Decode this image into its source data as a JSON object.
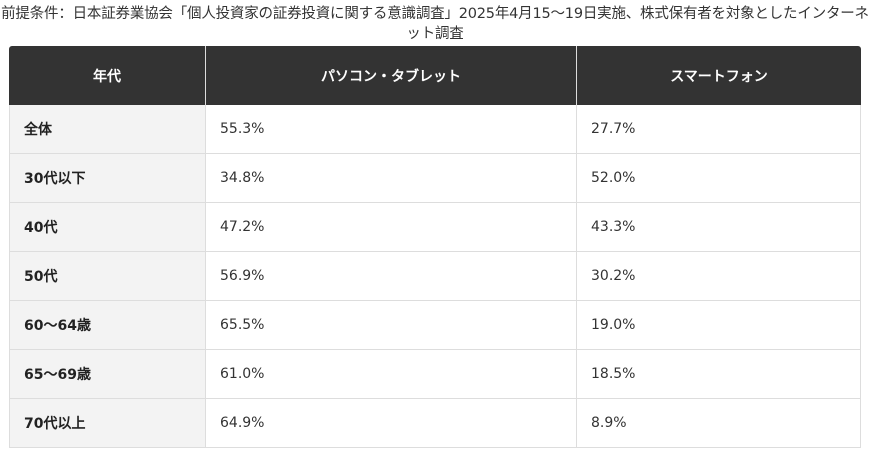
{
  "caption": "前提条件：日本証券業協会「個人投資家の証券投資に関する意識調査」2025年4月15～19日実施、株式保有者を対象としたインターネット調査",
  "table": {
    "headers": [
      "年代",
      "パソコン・タブレット",
      "スマートフォン"
    ],
    "rows": [
      [
        "全体",
        "55.3%",
        "27.7%"
      ],
      [
        "30代以下",
        "34.8%",
        "52.0%"
      ],
      [
        "40代",
        "47.2%",
        "43.3%"
      ],
      [
        "50代",
        "56.9%",
        "30.2%"
      ],
      [
        "60～64歳",
        "65.5%",
        "19.0%"
      ],
      [
        "65～69歳",
        "61.0%",
        "18.5%"
      ],
      [
        "70代以上",
        "64.9%",
        "8.9%"
      ]
    ]
  },
  "colors": {
    "header_bg": "#333333",
    "header_text": "#ffffff",
    "first_col_bg": "#f3f3f3",
    "border": "#dddddd"
  }
}
